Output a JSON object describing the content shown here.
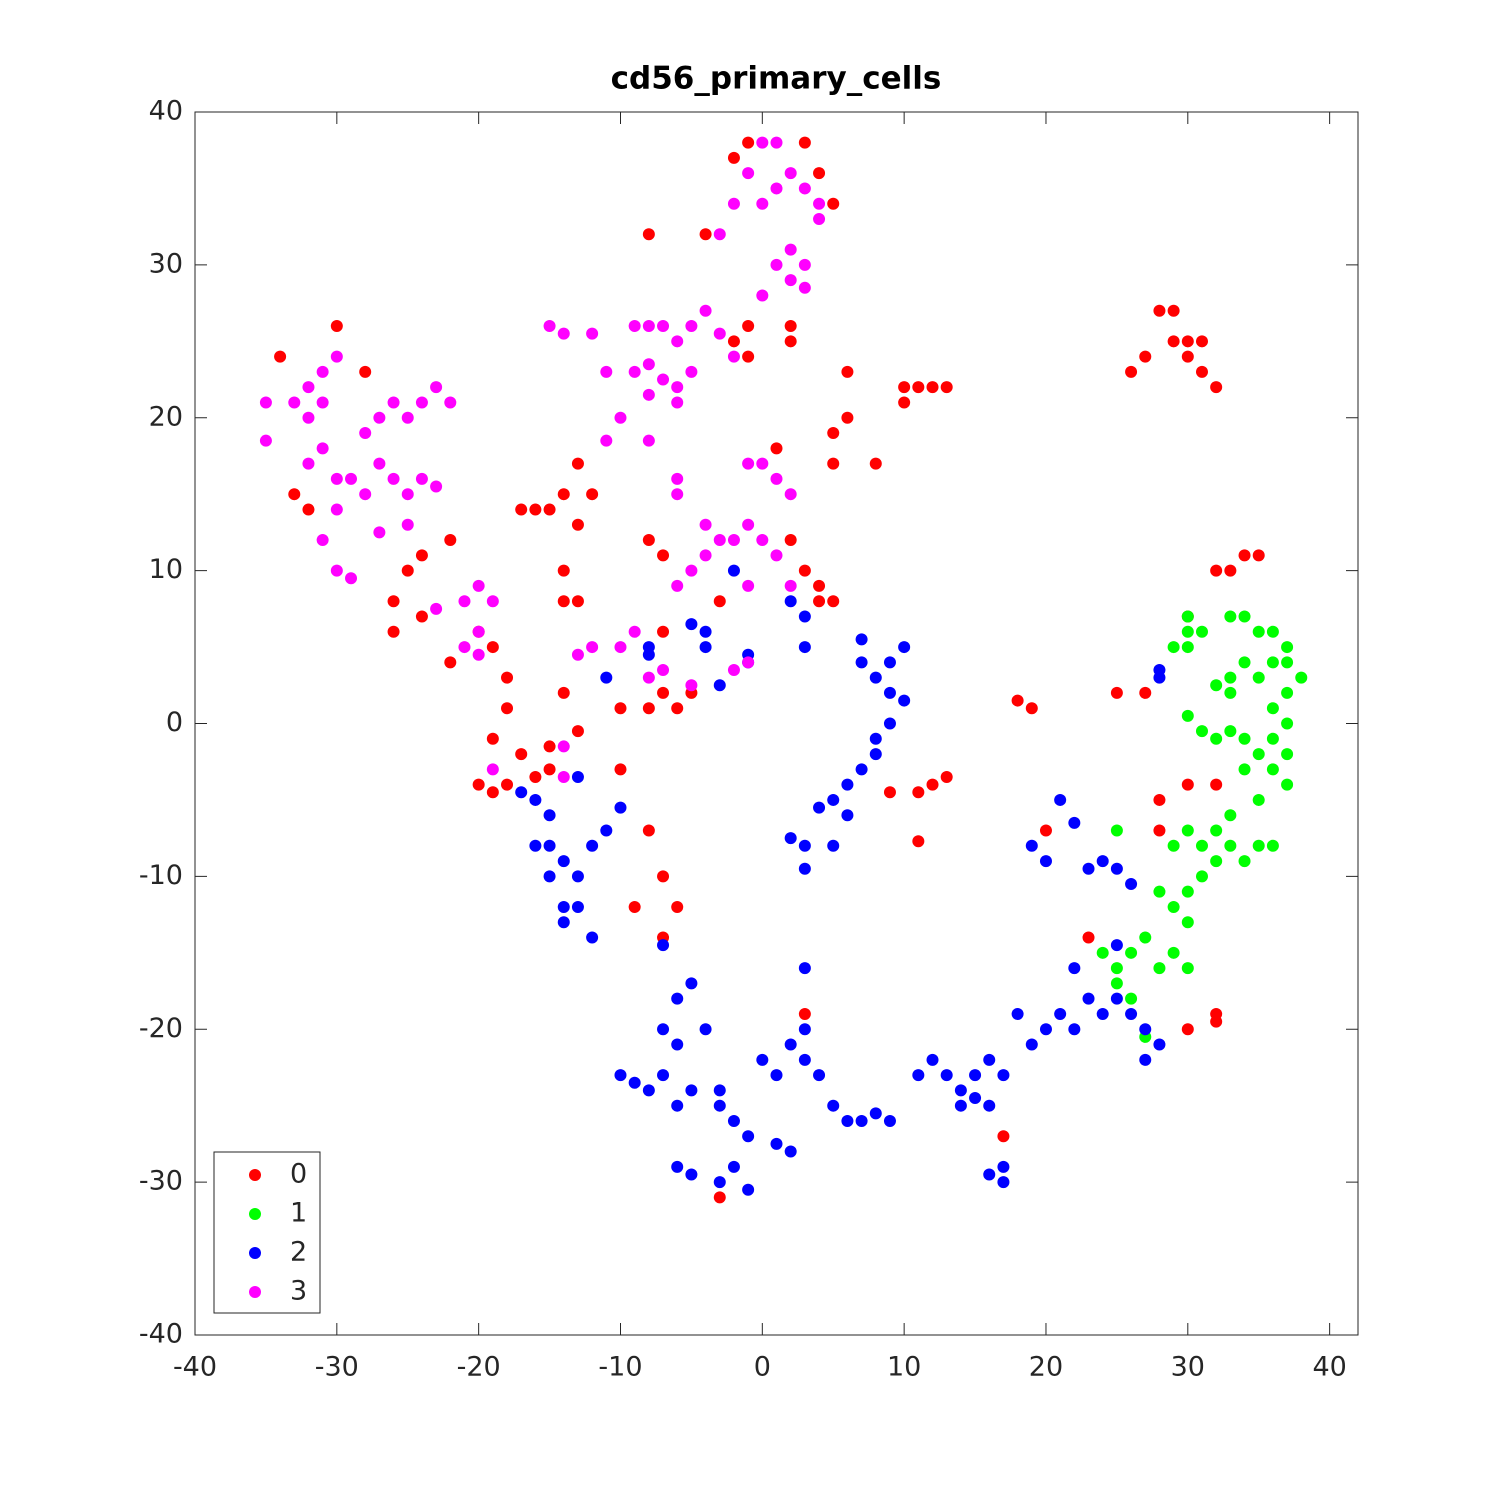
{
  "chart_data": {
    "type": "scatter",
    "title": "cd56_primary_cells",
    "xlim": [
      -40,
      42
    ],
    "ylim": [
      -40,
      40
    ],
    "xticks": [
      -40,
      -30,
      -20,
      -10,
      0,
      10,
      20,
      30,
      40
    ],
    "yticks": [
      -40,
      -30,
      -20,
      -10,
      0,
      10,
      20,
      30,
      40
    ],
    "legend": "lower left",
    "series": [
      {
        "name": "0",
        "color": "#ff0000",
        "x": [
          -34,
          -33,
          -32,
          -30,
          -28,
          -26,
          -26,
          -25,
          -24,
          -24,
          -22,
          -22,
          -20,
          -19,
          -18,
          -18,
          -19,
          -17,
          -18,
          -16,
          -17,
          -15,
          -14,
          -13,
          -13,
          -14,
          -14,
          -13,
          -12,
          -14,
          -13,
          -10,
          -10,
          -9,
          -8,
          -7,
          -6,
          -7,
          -8,
          -7,
          -7,
          -7,
          -8,
          -6,
          -5,
          -3,
          -4,
          -8,
          -2,
          -1,
          3,
          4,
          5,
          -1,
          -2,
          -1,
          2,
          2,
          1,
          2,
          3,
          4,
          4,
          5,
          6,
          6,
          5,
          5,
          8,
          10,
          10,
          11,
          12,
          13,
          28,
          29,
          29,
          30,
          30,
          31,
          31,
          32,
          26,
          27,
          30,
          32,
          34,
          35,
          33,
          18,
          19,
          25,
          27,
          28,
          30,
          32,
          28,
          20,
          23,
          9,
          11,
          12,
          13,
          11,
          3,
          17,
          -3,
          30,
          32,
          32,
          -20,
          -19,
          -16,
          -15,
          -15
        ],
        "values": [
          24,
          15,
          14,
          26,
          23,
          8,
          6,
          10,
          11,
          7,
          12,
          4,
          6,
          5,
          3,
          1,
          -1,
          -2,
          -4,
          14,
          14,
          14,
          15,
          13,
          17,
          10,
          8,
          8,
          15,
          2,
          -0.5,
          1,
          -3,
          -12,
          -7,
          -10,
          -12,
          -14,
          12,
          11,
          6,
          2,
          1,
          1,
          2,
          8,
          32,
          32,
          37,
          38,
          38,
          36,
          34,
          26,
          25,
          24,
          26,
          25,
          18,
          12,
          10,
          9,
          8,
          8,
          23,
          20,
          19,
          17,
          17,
          21,
          22,
          22,
          22,
          22,
          27,
          27,
          25,
          25,
          24,
          25,
          23,
          22,
          23,
          24,
          7,
          10,
          11,
          11,
          10,
          1.5,
          1,
          2,
          2,
          -5,
          -4,
          -4,
          -7,
          -7,
          -14,
          -4.5,
          -4.5,
          -4,
          -3.5,
          -7.7,
          -19,
          -27,
          -31,
          -20,
          -19,
          -19.5,
          -4,
          -4.5,
          -3.5,
          -3,
          -1.5
        ]
      },
      {
        "name": "1",
        "color": "#00ff00",
        "x": [
          29,
          30,
          30,
          30,
          31,
          33,
          34,
          35,
          36,
          37,
          37,
          38,
          37,
          36,
          35,
          34,
          33,
          33,
          32,
          30,
          31,
          32,
          33,
          34,
          35,
          36,
          37,
          35,
          34,
          33,
          32,
          31,
          30,
          29,
          33,
          34,
          35,
          36,
          31,
          30,
          29,
          30,
          29,
          28,
          27,
          26,
          25,
          24,
          25,
          26,
          30,
          28,
          32,
          25,
          27,
          36,
          37,
          36,
          37
        ],
        "values": [
          5,
          6,
          7,
          5,
          6,
          7,
          7,
          6,
          6,
          5,
          4,
          3,
          2,
          1,
          3,
          4,
          2,
          3,
          2.5,
          0.5,
          -0.5,
          -1,
          -0.5,
          -1,
          -2,
          -3,
          -4,
          -5,
          -3,
          -6,
          -7,
          -8,
          -7,
          -8,
          -8,
          -9,
          -8,
          -8,
          -10,
          -11,
          -12,
          -13,
          -15,
          -16,
          -14,
          -15,
          -16,
          -15,
          -17,
          -18,
          -16,
          -11,
          -9,
          -7,
          -20.5,
          4,
          0,
          -1,
          -2
        ]
      },
      {
        "name": "2",
        "color": "#0000ff",
        "x": [
          -2,
          -4,
          -4,
          -8,
          -11,
          -5,
          -3,
          -1,
          -1,
          2,
          3,
          3,
          7,
          7,
          8,
          9,
          9,
          10,
          10,
          9,
          8,
          8,
          7,
          6,
          5,
          6,
          4,
          2,
          3,
          3,
          5,
          -17,
          -16,
          -15,
          -15,
          -14,
          -13,
          -16,
          -15,
          -14,
          -14,
          -13,
          -12,
          -12,
          -11,
          -10,
          -13,
          -7,
          -5,
          -6,
          -7,
          -6,
          -4,
          -10,
          -9,
          -8,
          -7,
          -6,
          -5,
          -3,
          -3,
          -2,
          -1,
          0,
          1,
          2,
          3,
          3,
          4,
          5,
          6,
          7,
          8,
          9,
          1,
          2,
          -6,
          -5,
          -3,
          -1,
          -2,
          3,
          11,
          12,
          13,
          14,
          14,
          15,
          15,
          16,
          16,
          17,
          18,
          19,
          20,
          21,
          22,
          23,
          24,
          25,
          26,
          27,
          28,
          27,
          16,
          17,
          17,
          25,
          22,
          21,
          22,
          19,
          20,
          23,
          24,
          25,
          26,
          28,
          28,
          -8
        ],
        "values": [
          10,
          6,
          5,
          5,
          3,
          6.5,
          2.5,
          4.5,
          4,
          8,
          7,
          5,
          5.5,
          4,
          3,
          4,
          2,
          5,
          1.5,
          0,
          -1,
          -2,
          -3,
          -4,
          -5,
          -6,
          -5.5,
          -7.5,
          -8,
          -9.5,
          -8,
          -4.5,
          -5,
          -6,
          -8,
          -9,
          -10,
          -8,
          -10,
          -12,
          -13,
          -12,
          -14,
          -8,
          -7,
          -5.5,
          -3.5,
          -14.5,
          -17,
          -18,
          -20,
          -21,
          -20,
          -23,
          -23.5,
          -24,
          -23,
          -25,
          -24,
          -24,
          -25,
          -26,
          -27,
          -22,
          -23,
          -21,
          -20,
          -22,
          -23,
          -25,
          -26,
          -26,
          -25.5,
          -26,
          -27.5,
          -28,
          -29,
          -29.5,
          -30,
          -30.5,
          -29,
          -16,
          -23,
          -22,
          -23,
          -24,
          -25,
          -24.5,
          -23,
          -22,
          -25,
          -23,
          -19,
          -21,
          -20,
          -19,
          -20,
          -18,
          -19,
          -18,
          -19,
          -22,
          -21,
          -20,
          -29.5,
          -30,
          -29,
          -14.5,
          -16,
          -5,
          -6.5,
          -8,
          -9,
          -9.5,
          -9,
          -9.5,
          -10.5,
          3.5,
          3,
          4.5
        ]
      },
      {
        "name": "3",
        "color": "#ff00ff",
        "x": [
          -35,
          -35,
          -33,
          -32,
          -31,
          -32,
          -31,
          -32,
          -30,
          -31,
          -30,
          -29,
          -30,
          -31,
          -30,
          -29,
          -28,
          -28,
          -27,
          -27,
          -26,
          -25,
          -24,
          -23,
          -26,
          -25,
          -24,
          -23,
          -22,
          -25,
          -27,
          -23,
          -21,
          -20,
          -19,
          -20,
          -21,
          -20,
          -19,
          -14,
          -14,
          -13,
          -12,
          -10,
          -9,
          -8,
          -7,
          -5,
          -2,
          -1,
          -6,
          -5,
          -4,
          -3,
          -2,
          -4,
          -6,
          -6,
          -1,
          0,
          1,
          -1,
          2,
          1,
          2,
          -1,
          0,
          -8,
          -11,
          -10,
          -11,
          -9,
          -8,
          -7,
          -6,
          -5,
          -8,
          -6,
          -9,
          -8,
          -7,
          -6,
          -5,
          -4,
          -3,
          -2,
          -15,
          -14,
          -12,
          -3,
          -2,
          -1,
          0,
          1,
          2,
          3,
          4,
          0,
          1,
          2,
          3,
          1,
          2,
          3,
          0,
          4
        ],
        "values": [
          21,
          18.5,
          21,
          22,
          21,
          20,
          18,
          17,
          24,
          23,
          16,
          16,
          14,
          12,
          10,
          9.5,
          15,
          19,
          20,
          17,
          21,
          20,
          21,
          22,
          16,
          15,
          16,
          15.5,
          21,
          13,
          12.5,
          7.5,
          8,
          9,
          8,
          6,
          5,
          4.5,
          -3,
          -1.5,
          -3.5,
          4.5,
          5,
          5,
          6,
          3,
          3.5,
          2.5,
          3.5,
          4,
          9,
          10,
          11,
          12,
          12,
          13,
          15,
          16,
          13,
          12,
          11,
          9,
          9,
          16,
          15,
          17,
          17,
          18.5,
          18.5,
          20,
          23,
          23,
          23.5,
          22.5,
          22,
          23,
          21.5,
          21,
          26,
          26,
          26,
          25,
          26,
          27,
          25.5,
          24,
          26,
          25.5,
          25.5,
          32,
          34,
          36,
          34,
          35,
          36,
          35,
          34,
          38,
          38,
          31,
          30,
          30,
          29,
          28.5,
          28,
          33
        ]
      }
    ]
  }
}
